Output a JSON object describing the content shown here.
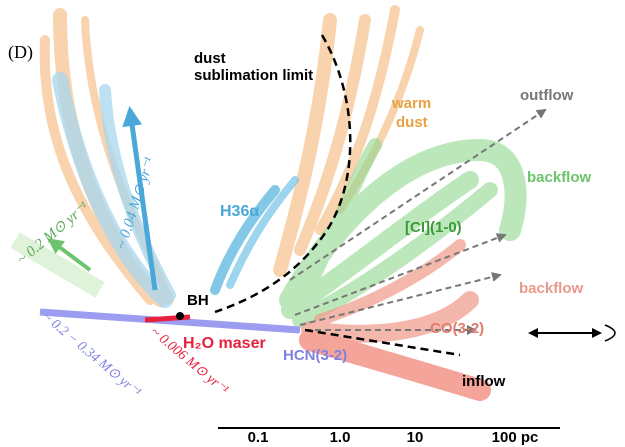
{
  "panel_label": "(D)",
  "labels": {
    "dust_sublimation": [
      "dust",
      "sublimation limit"
    ],
    "warm_dust": [
      "warm",
      "dust"
    ],
    "outflow": "outflow",
    "backflow_green": "backflow",
    "h36a": "H36α",
    "ci": "[CI](1-0)",
    "backflow_pink": "backflow",
    "bh": "BH",
    "h2o": "H₂O maser",
    "co": "CO(3-2)",
    "hcn": "HCN(3-2)",
    "inflow": "inflow"
  },
  "rates": {
    "blue": "~ 0.04 M⊙ yr⁻¹",
    "green": "~ 0.2 M⊙ yr⁻¹",
    "purple": "~ 0.2 − 0.34 M⊙ yr⁻¹",
    "red": "~ 0.006 M⊙ yr⁻¹"
  },
  "scale_bar": [
    "0.1",
    "1.0",
    "10",
    "100 pc"
  ]
}
